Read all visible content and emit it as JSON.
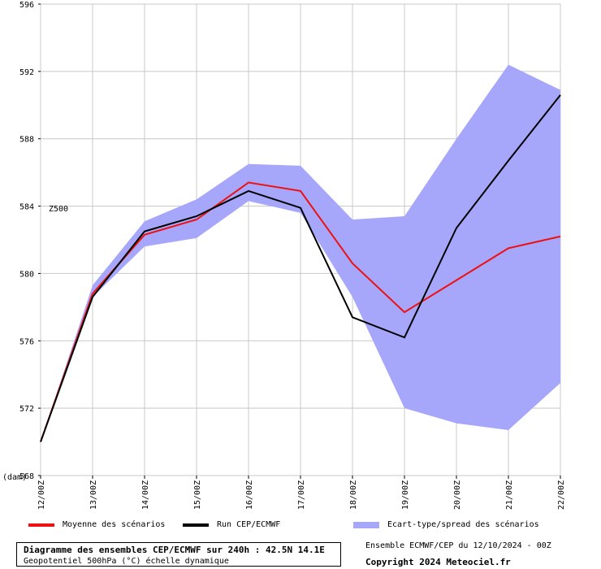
{
  "chart_data": {
    "type": "line",
    "x_labels": [
      "12/00Z",
      "13/00Z",
      "14/00Z",
      "15/00Z",
      "16/00Z",
      "17/00Z",
      "18/00Z",
      "19/00Z",
      "20/00Z",
      "21/00Z",
      "22/00Z"
    ],
    "ylim": [
      568,
      596
    ],
    "yticks": [
      568,
      572,
      576,
      580,
      584,
      588,
      592,
      596
    ],
    "y_unit_label": "(dam)",
    "series_label": "Z500",
    "grid": true,
    "series": [
      {
        "name": "Moyenne des scénarios",
        "color": "#ee1111",
        "values": [
          570.0,
          578.8,
          582.3,
          583.2,
          585.4,
          584.9,
          580.6,
          577.7,
          579.6,
          581.5,
          582.2
        ]
      },
      {
        "name": "Run CEP/ECMWF",
        "color": "#000000",
        "values": [
          570.0,
          578.6,
          582.5,
          583.4,
          584.9,
          583.9,
          577.4,
          576.2,
          582.7,
          586.7,
          590.6
        ]
      }
    ],
    "band": {
      "name": "Ecart-type/spread des scénarios",
      "color": "#a6a6fb",
      "upper": [
        570.0,
        579.3,
        583.1,
        584.4,
        586.5,
        586.4,
        583.2,
        583.4,
        588.0,
        592.4,
        590.9
      ],
      "lower": [
        570.0,
        578.6,
        581.6,
        582.1,
        584.3,
        583.6,
        578.6,
        572.0,
        571.1,
        570.7,
        573.5
      ]
    }
  },
  "footer": {
    "title": "Diagramme des ensembles CEP/ECMWF sur 240h : 42.5N 14.1E",
    "subtitle": "Geopotentiel 500hPa (°C) échelle dynamique",
    "run_info": "Ensemble ECMWF/CEP du 12/10/2024 - 00Z",
    "copyright": "Copyright 2024 Meteociel.fr"
  }
}
